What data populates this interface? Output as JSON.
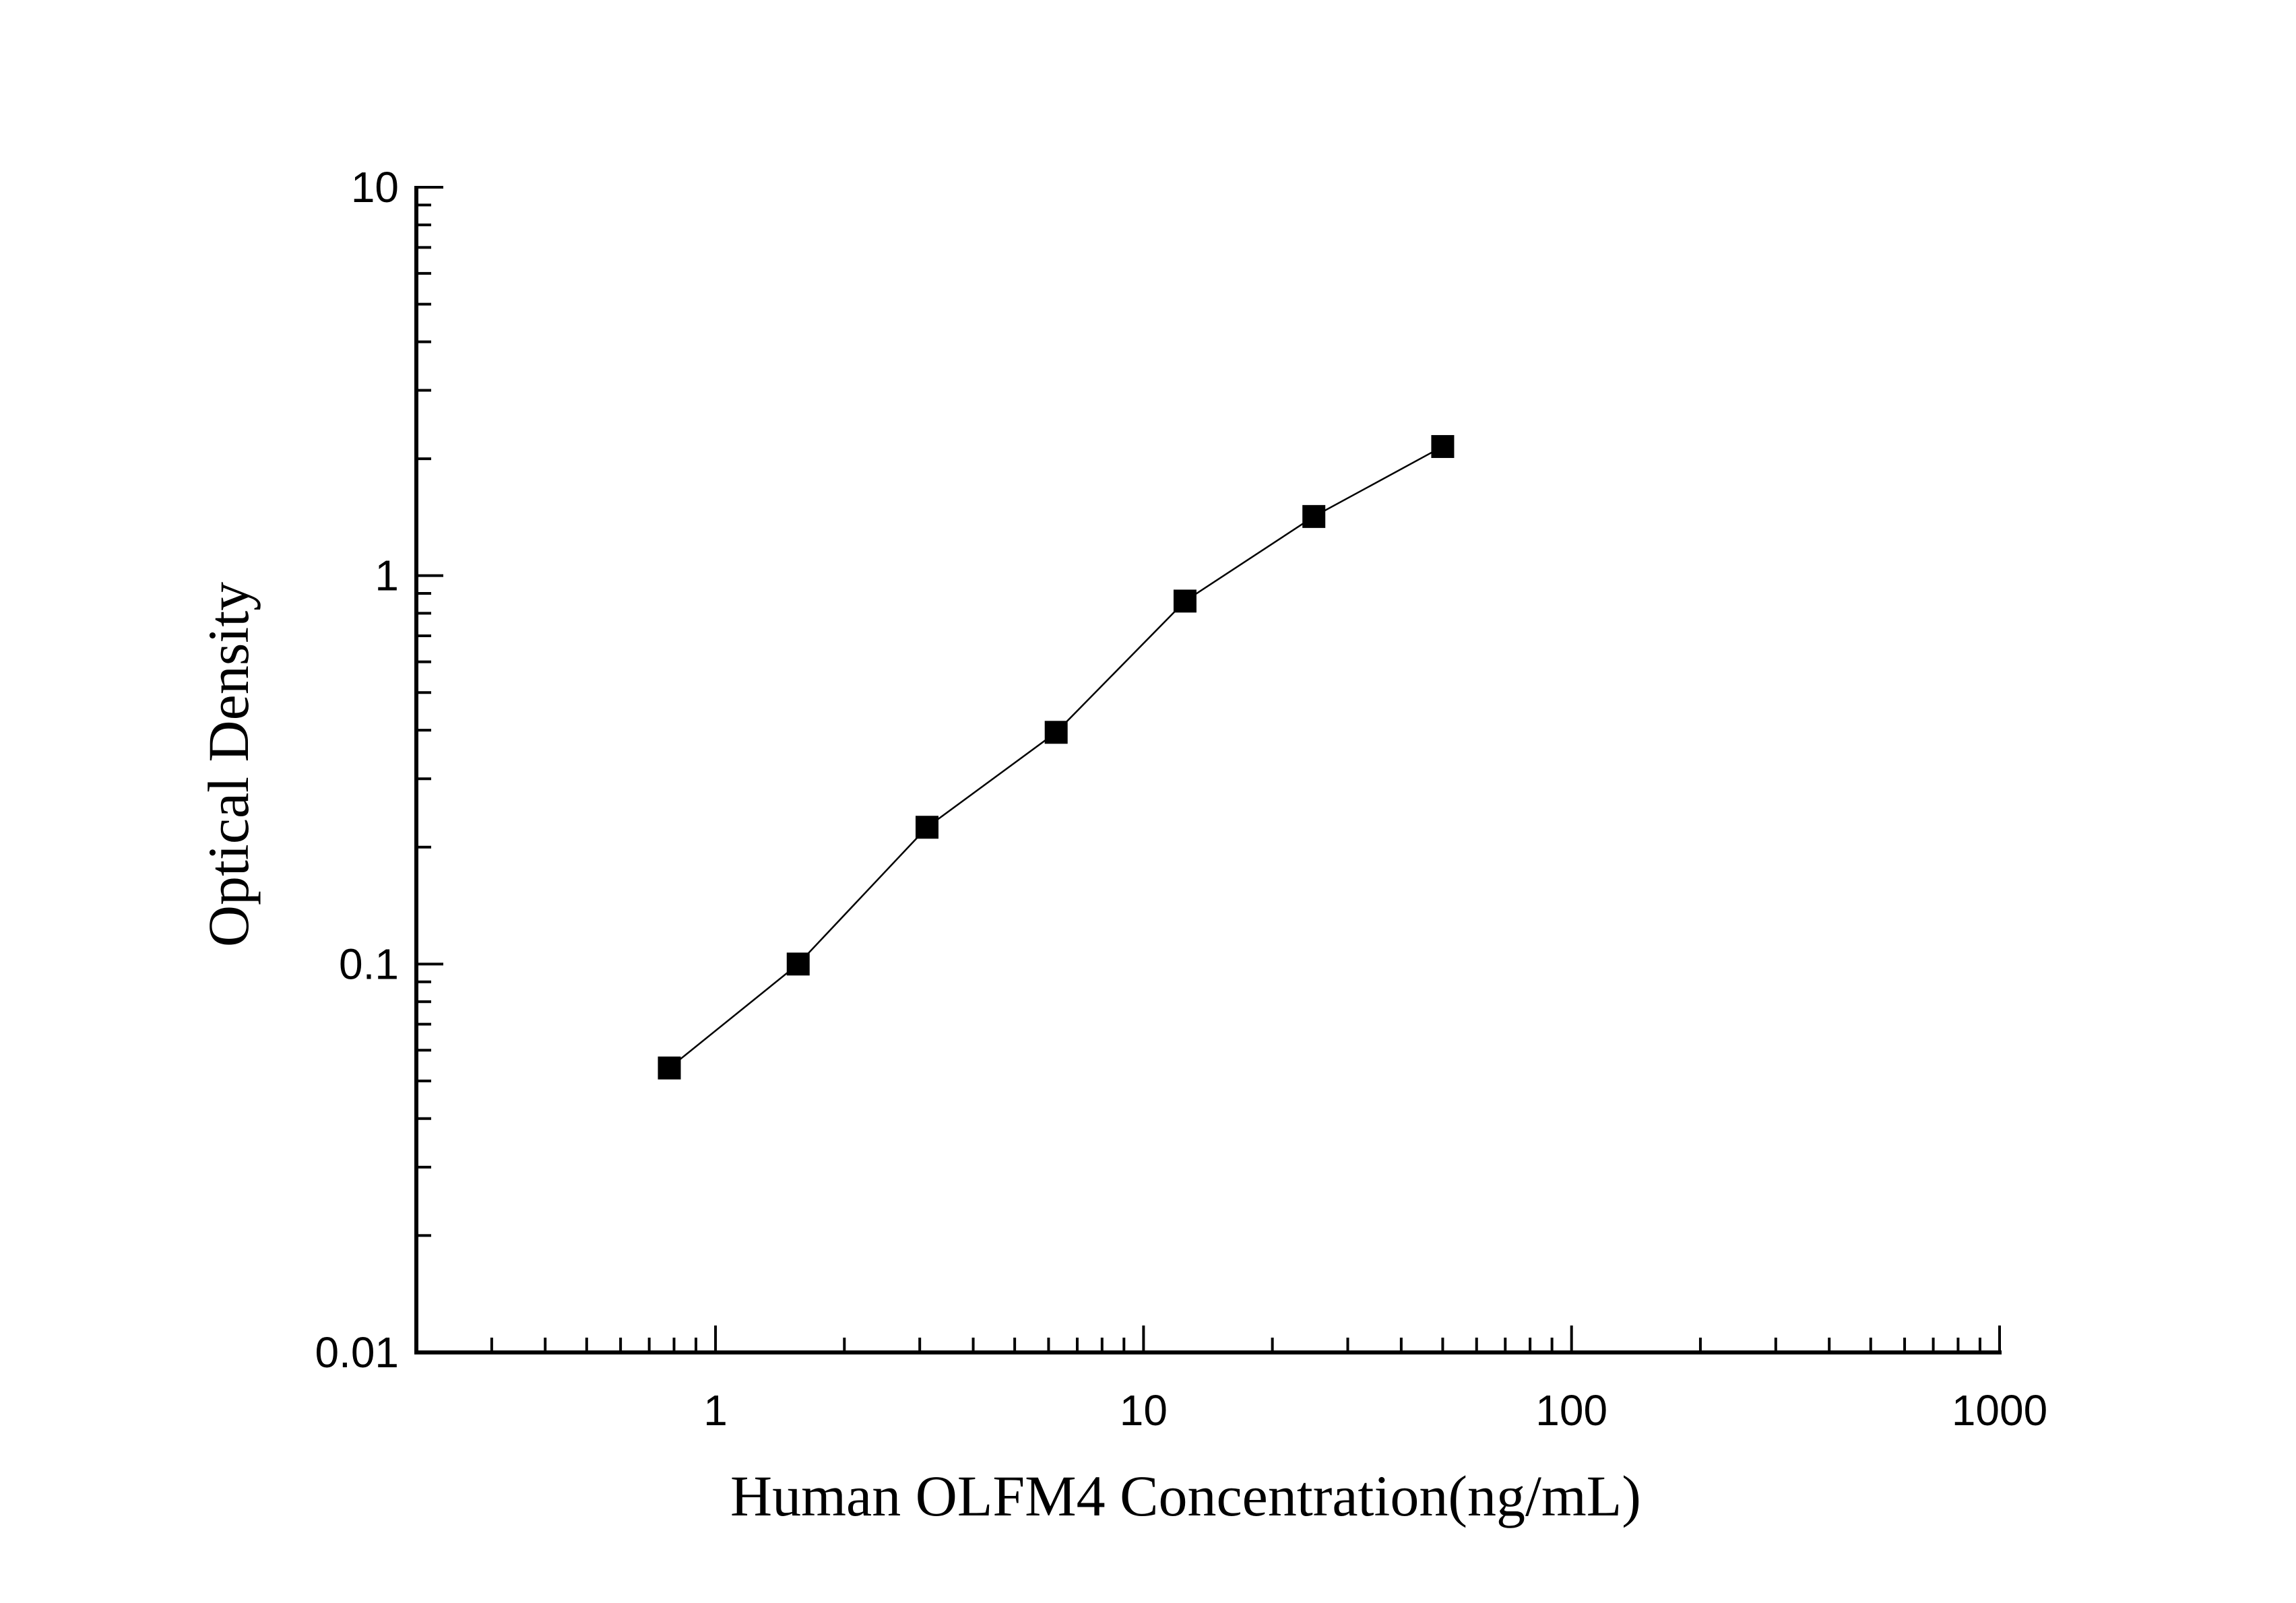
{
  "chart_data": {
    "type": "scatter",
    "title": "",
    "xlabel": "Human OLFM4 Concentration(ng/mL)",
    "ylabel": "Optical Density",
    "x_scale": "log",
    "y_scale": "log",
    "xlim": [
      0.2,
      1000
    ],
    "ylim": [
      0.01,
      10
    ],
    "x_ticks": [
      {
        "value": 1,
        "label": "1"
      },
      {
        "value": 10,
        "label": "10"
      },
      {
        "value": 100,
        "label": "100"
      },
      {
        "value": 1000,
        "label": "1000"
      }
    ],
    "y_ticks": [
      {
        "value": 0.01,
        "label": "0.01"
      },
      {
        "value": 0.1,
        "label": "0.1"
      },
      {
        "value": 1,
        "label": "1"
      },
      {
        "value": 10,
        "label": "10"
      }
    ],
    "grid": false,
    "legend": "none",
    "series": [
      {
        "marker": "square",
        "color": "#000000",
        "line": true,
        "x": [
          0.78,
          1.56,
          3.12,
          6.25,
          12.5,
          25,
          50
        ],
        "y": [
          0.054,
          0.1,
          0.225,
          0.395,
          0.86,
          1.42,
          2.15
        ]
      }
    ]
  }
}
